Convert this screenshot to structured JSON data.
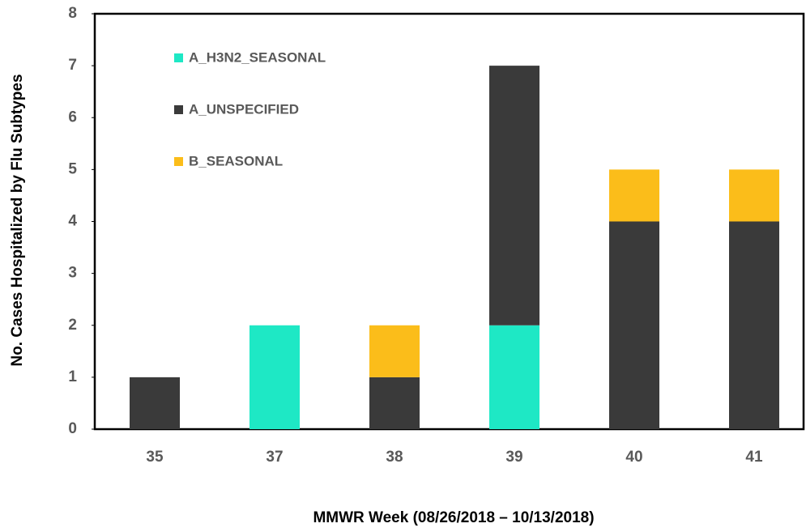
{
  "chart_data": {
    "type": "stacked-bar",
    "x_label": "MMWR Week (08/26/2018 – 10/13/2018)",
    "y_label": "No. Cases Hospitalized by Flu Subtypes",
    "categories": [
      "35",
      "37",
      "38",
      "39",
      "40",
      "41"
    ],
    "series": [
      {
        "name": "A_H3N2_SEASONAL",
        "color": "#1ee8c5",
        "values": [
          0,
          2,
          0,
          2,
          0,
          0
        ]
      },
      {
        "name": "A_UNSPECIFIED",
        "color": "#3a3a3a",
        "values": [
          1,
          0,
          1,
          5,
          4,
          4
        ]
      },
      {
        "name": "B_SEASONAL",
        "color": "#fbbd1a",
        "values": [
          0,
          0,
          1,
          0,
          1,
          1
        ]
      }
    ],
    "ylim": [
      0,
      8
    ],
    "yticks": [
      0,
      1,
      2,
      3,
      4,
      5,
      6,
      7,
      8
    ],
    "grid": false,
    "legend": "upper left"
  }
}
